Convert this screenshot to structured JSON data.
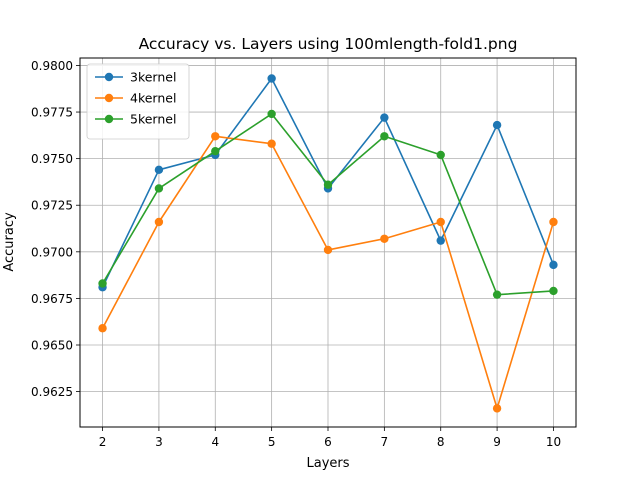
{
  "chart_data": {
    "type": "line",
    "title": "Accuracy vs. Layers using 100mlength-fold1.png",
    "xlabel": "Layers",
    "ylabel": "Accuracy",
    "x": [
      2,
      3,
      4,
      5,
      6,
      7,
      8,
      9,
      10
    ],
    "x_ticks": [
      "2",
      "3",
      "4",
      "5",
      "6",
      "7",
      "8",
      "9",
      "10"
    ],
    "xlim": [
      1.6,
      10.4
    ],
    "ylim": [
      0.9606,
      0.9804
    ],
    "y_ticks": [
      0.9625,
      0.965,
      0.9675,
      0.97,
      0.9725,
      0.975,
      0.9775,
      0.98
    ],
    "y_tick_labels": [
      "0.9625",
      "0.9650",
      "0.9675",
      "0.9700",
      "0.9725",
      "0.9750",
      "0.9775",
      "0.9800"
    ],
    "grid": true,
    "legend_position": "top-left",
    "series": [
      {
        "name": "3kernel",
        "color": "#1f77b4",
        "values": [
          0.9681,
          0.9744,
          0.9752,
          0.9793,
          0.9734,
          0.9772,
          0.9706,
          0.9768,
          0.9693
        ]
      },
      {
        "name": "4kernel",
        "color": "#ff7f0e",
        "values": [
          0.9659,
          0.9716,
          0.9762,
          0.9758,
          0.9701,
          0.9707,
          0.9716,
          0.9616,
          0.9716
        ]
      },
      {
        "name": "5kernel",
        "color": "#2ca02c",
        "values": [
          0.9683,
          0.9734,
          0.9754,
          0.9774,
          0.9736,
          0.9762,
          0.9752,
          0.9677,
          0.9679
        ]
      }
    ]
  }
}
